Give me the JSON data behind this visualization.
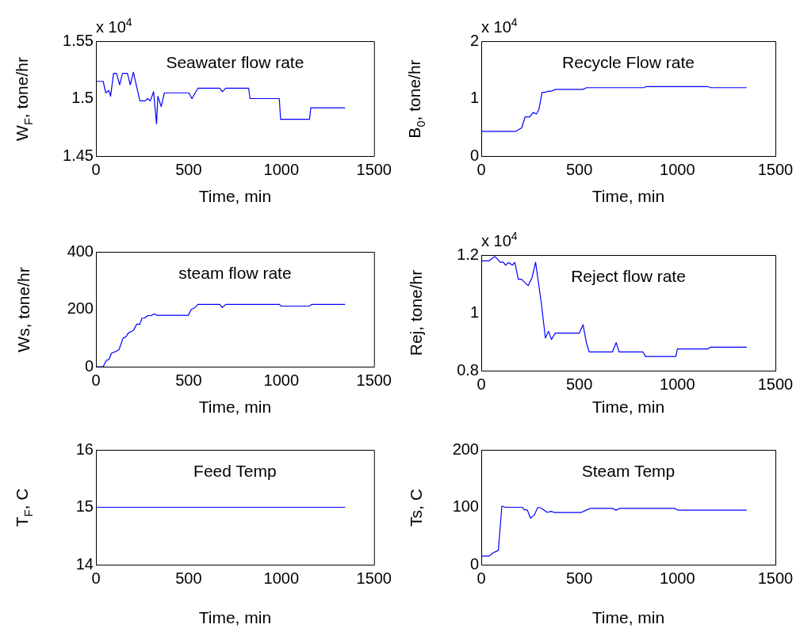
{
  "chart_data": [
    {
      "type": "line",
      "title": "Seawater flow rate",
      "xlabel": "Time, min",
      "ylabel": "W$_{F}$, tone/hr",
      "annotations": [
        "x 10$^{4}$"
      ],
      "color": "#0000ff",
      "x": [
        0,
        39,
        53,
        70,
        79,
        95,
        111,
        128,
        143,
        160,
        170,
        185,
        202,
        237,
        265,
        279,
        293,
        311,
        327,
        334,
        352,
        369,
        501,
        518,
        550,
        668,
        682,
        700,
        824,
        831,
        989,
        996,
        1152,
        1159,
        1344
      ],
      "values": [
        1.515,
        1.515,
        1.505,
        1.507,
        1.502,
        1.522,
        1.522,
        1.512,
        1.522,
        1.522,
        1.522,
        1.512,
        1.523,
        1.498,
        1.498,
        1.5,
        1.498,
        1.506,
        1.478,
        1.502,
        1.493,
        1.505,
        1.505,
        1.5,
        1.509,
        1.509,
        1.506,
        1.509,
        1.509,
        1.5,
        1.5,
        1.482,
        1.482,
        1.492,
        1.492
      ],
      "xlim": [
        0,
        1500
      ],
      "xticks": [
        0,
        500,
        1000,
        1500
      ],
      "ylim": [
        1.45,
        1.55
      ],
      "yticks": [
        1.45,
        1.5,
        1.55
      ]
    },
    {
      "type": "line",
      "title": "Recycle Flow rate",
      "xlabel": "Time, min",
      "ylabel": "B$_{0}$, tone/hr",
      "annotations": [
        "x 10$^{4}$"
      ],
      "color": "#0000ff",
      "x": [
        0,
        176,
        206,
        223,
        247,
        265,
        281,
        294,
        310,
        324,
        342,
        358,
        378,
        517,
        537,
        828,
        841,
        1152,
        1172,
        1354
      ],
      "values": [
        0.43,
        0.43,
        0.49,
        0.68,
        0.68,
        0.76,
        0.73,
        0.81,
        1.11,
        1.11,
        1.13,
        1.13,
        1.16,
        1.16,
        1.19,
        1.19,
        1.21,
        1.21,
        1.19,
        1.19
      ],
      "xlim": [
        0,
        1500
      ],
      "xticks": [
        0,
        500,
        1000,
        1500
      ],
      "ylim": [
        0,
        2
      ],
      "yticks": [
        0,
        1,
        2
      ]
    },
    {
      "type": "line",
      "title": "steam flow rate",
      "xlabel": "Time, min",
      "ylabel": "Ws,  tone/hr",
      "color": "#0000ff",
      "x": [
        0,
        39,
        56,
        70,
        84,
        104,
        125,
        146,
        163,
        174,
        202,
        220,
        237,
        248,
        262,
        279,
        299,
        313,
        330,
        498,
        515,
        533,
        550,
        668,
        682,
        700,
        989,
        999,
        1152,
        1163,
        1344
      ],
      "values": [
        0,
        0,
        22,
        25,
        47,
        52,
        60,
        99,
        105,
        117,
        126,
        148,
        148,
        169,
        169,
        178,
        178,
        184,
        179,
        179,
        200,
        205,
        217,
        217,
        206,
        217,
        217,
        211,
        211,
        217,
        217
      ],
      "xlim": [
        0,
        1500
      ],
      "xticks": [
        0,
        500,
        1000,
        1500
      ],
      "ylim": [
        0,
        400
      ],
      "yticks": [
        0,
        200,
        400
      ]
    },
    {
      "type": "line",
      "title": "Reject flow rate",
      "xlabel": "Time, min",
      "ylabel": "Rej, tone/hr",
      "annotations": [
        "x 10$^{4}$"
      ],
      "color": "#0000ff",
      "x": [
        0,
        40,
        70,
        97,
        113,
        124,
        140,
        158,
        171,
        189,
        205,
        239,
        259,
        277,
        306,
        327,
        343,
        358,
        377,
        500,
        519,
        536,
        550,
        669,
        688,
        703,
        824,
        838,
        992,
        1000,
        1154,
        1168,
        1354
      ],
      "values": [
        1.18,
        1.18,
        1.195,
        1.175,
        1.175,
        1.165,
        1.174,
        1.165,
        1.174,
        1.116,
        1.116,
        1.094,
        1.122,
        1.175,
        1.035,
        0.913,
        0.936,
        0.908,
        0.93,
        0.93,
        0.959,
        0.897,
        0.865,
        0.865,
        0.897,
        0.865,
        0.865,
        0.849,
        0.849,
        0.875,
        0.875,
        0.881,
        0.881
      ],
      "xlim": [
        0,
        1500
      ],
      "xticks": [
        0,
        500,
        1000,
        1500
      ],
      "ylim": [
        0.8,
        1.2
      ],
      "yticks": [
        0.8,
        1,
        1.2
      ]
    },
    {
      "type": "line",
      "title": "Feed Temp",
      "xlabel": "Time, min",
      "ylabel": "T$_{F}$, C",
      "color": "#0000ff",
      "x": [
        0,
        1344
      ],
      "values": [
        15,
        15
      ],
      "xlim": [
        0,
        1500
      ],
      "xticks": [
        0,
        500,
        1000,
        1500
      ],
      "ylim": [
        14,
        16
      ],
      "yticks": [
        14,
        15,
        16
      ]
    },
    {
      "type": "line",
      "title": "Steam Temp",
      "xlabel": "Time, min",
      "ylabel": "Ts, C",
      "color": "#0000ff",
      "x": [
        0,
        41,
        57,
        87,
        105,
        123,
        210,
        218,
        235,
        251,
        269,
        289,
        303,
        337,
        357,
        371,
        510,
        535,
        555,
        671,
        687,
        705,
        988,
        1001,
        1353
      ],
      "values": [
        15,
        15,
        20,
        25,
        102,
        100,
        100,
        96,
        95,
        81,
        86,
        100,
        99,
        91,
        93,
        91,
        91,
        95,
        98,
        98,
        95,
        98,
        98,
        95,
        95
      ],
      "xlim": [
        0,
        1500
      ],
      "xticks": [
        0,
        500,
        1000,
        1500
      ],
      "ylim": [
        0,
        200
      ],
      "yticks": [
        0,
        100,
        200
      ]
    }
  ]
}
